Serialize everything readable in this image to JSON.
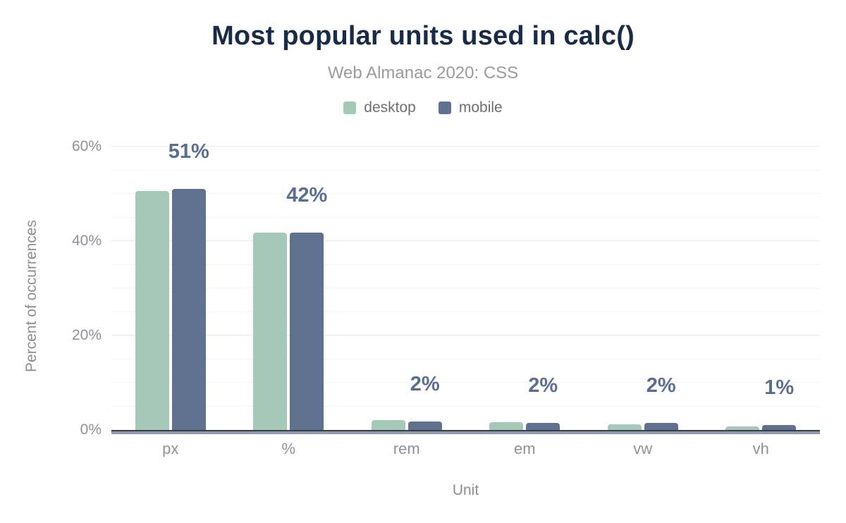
{
  "header": {
    "title": "Most popular units used in calc()",
    "subtitle": "Web Almanac 2020: CSS"
  },
  "chart_data": {
    "type": "bar",
    "title": "Most popular units used in calc()",
    "subtitle": "Web Almanac 2020: CSS",
    "categories": [
      "px",
      "%",
      "rem",
      "em",
      "vw",
      "vh"
    ],
    "series": [
      {
        "name": "desktop",
        "color": "#a5c9b8",
        "values": [
          50.6,
          41.8,
          2.1,
          1.6,
          1.2,
          0.7
        ]
      },
      {
        "name": "mobile",
        "color": "#5f718e",
        "values": [
          51.0,
          41.8,
          1.8,
          1.5,
          1.5,
          1.1
        ]
      }
    ],
    "bar_labels": [
      "51%",
      "42%",
      "2%",
      "2%",
      "2%",
      "1%"
    ],
    "xlabel": "Unit",
    "ylabel": "Percent of occurrences",
    "ylim": [
      0,
      60
    ],
    "y_tick_pcts": [
      0,
      20,
      40,
      60
    ],
    "y_tick_labels": [
      "0%",
      "20%",
      "40%",
      "60%"
    ],
    "grid": {
      "minor_step": 5,
      "major_step": 20,
      "orientation": "horizontal"
    },
    "legend_position": "top"
  },
  "colors": {
    "desktop": "#a5c9b8",
    "mobile": "#5f718e",
    "bar_value_label": "#5b6d90",
    "title": "#1a2b49",
    "subtitle": "#9b9b9b",
    "axis_text": "#8d9199",
    "gridline_major": "#e9e9e9",
    "gridline_minor": "#f4f4f4",
    "axis_line": "#3b3e42",
    "axis_underline": "#8e9aae",
    "background": "#ffffff"
  }
}
